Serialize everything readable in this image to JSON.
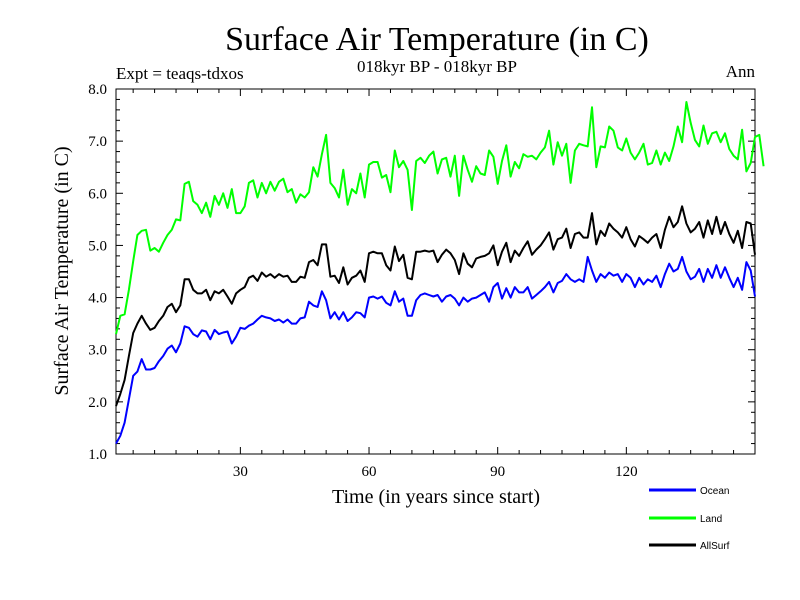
{
  "chart_data": {
    "type": "line",
    "title": "Surface Air Temperature (in C)",
    "subtitle": "018kyr BP - 018kyr BP",
    "expt_label": "Expt = teaqs-tdxos",
    "season_label": "Ann",
    "xlabel": "Time (in years since start)",
    "ylabel": "Surface Air Temperature (in C)",
    "xlim": [
      1,
      150
    ],
    "ylim": [
      1.0,
      8.0
    ],
    "x_ticks": [
      30,
      60,
      90,
      120
    ],
    "x_tick_labels": [
      "30",
      "60",
      "90",
      "120"
    ],
    "y_ticks": [
      1,
      2,
      3,
      4,
      5,
      6,
      7,
      8
    ],
    "y_tick_labels": [
      "1.0",
      "2.0",
      "3.0",
      "4.0",
      "5.0",
      "6.0",
      "7.0",
      "8.0"
    ],
    "legend_position": "bottom-right",
    "series": [
      {
        "name": "Ocean",
        "color": "#0000ff",
        "values": [
          1.2,
          1.35,
          1.6,
          2.05,
          2.5,
          2.58,
          2.82,
          2.62,
          2.62,
          2.65,
          2.78,
          2.88,
          3.02,
          3.08,
          2.95,
          3.12,
          3.45,
          3.42,
          3.3,
          3.25,
          3.37,
          3.35,
          3.2,
          3.38,
          3.3,
          3.33,
          3.35,
          3.12,
          3.25,
          3.42,
          3.4,
          3.46,
          3.5,
          3.58,
          3.65,
          3.62,
          3.6,
          3.55,
          3.58,
          3.52,
          3.58,
          3.5,
          3.5,
          3.6,
          3.62,
          3.92,
          3.85,
          3.82,
          4.12,
          3.95,
          3.6,
          3.72,
          3.58,
          3.72,
          3.55,
          3.62,
          3.72,
          3.7,
          3.62,
          4.0,
          4.02,
          3.98,
          4.02,
          3.9,
          3.85,
          4.12,
          3.92,
          3.98,
          3.65,
          3.65,
          3.95,
          4.05,
          4.08,
          4.05,
          4.02,
          4.05,
          3.92,
          4.02,
          4.05,
          3.98,
          3.85,
          4.0,
          3.92,
          3.98,
          4.0,
          4.05,
          4.1,
          3.92,
          4.2,
          4.28,
          3.98,
          4.18,
          4.0,
          4.2,
          4.1,
          4.1,
          4.2,
          3.98,
          4.05,
          4.12,
          4.2,
          4.3,
          4.1,
          4.28,
          4.32,
          4.45,
          4.35,
          4.3,
          4.35,
          4.3,
          4.78,
          4.52,
          4.3,
          4.45,
          4.38,
          4.48,
          4.42,
          4.45,
          4.3,
          4.45,
          4.38,
          4.2,
          4.38,
          4.25,
          4.35,
          4.3,
          4.42,
          4.2,
          4.45,
          4.65,
          4.5,
          4.55,
          4.78,
          4.5,
          4.35,
          4.4,
          4.55,
          4.3,
          4.55,
          4.38,
          4.62,
          4.38,
          4.58,
          4.38,
          4.2,
          4.38,
          4.15,
          4.68,
          4.52,
          4.02
        ]
      },
      {
        "name": "Land",
        "color": "#00ff00",
        "values": [
          3.3,
          3.65,
          3.68,
          4.15,
          4.7,
          5.2,
          5.28,
          5.3,
          4.9,
          4.95,
          4.88,
          5.05,
          5.2,
          5.3,
          5.5,
          5.48,
          6.18,
          6.22,
          5.85,
          5.78,
          5.62,
          5.82,
          5.55,
          5.95,
          5.78,
          6.0,
          5.72,
          6.08,
          5.62,
          5.62,
          5.75,
          6.2,
          6.25,
          5.92,
          6.2,
          6.0,
          6.22,
          6.05,
          6.22,
          6.28,
          6.02,
          6.08,
          5.82,
          5.98,
          5.92,
          6.02,
          6.5,
          6.32,
          6.75,
          7.12,
          6.2,
          6.1,
          5.92,
          6.45,
          5.78,
          6.08,
          6.0,
          6.38,
          5.92,
          6.55,
          6.6,
          6.6,
          6.3,
          6.35,
          6.02,
          6.82,
          6.5,
          6.62,
          6.45,
          5.68,
          6.62,
          6.68,
          6.58,
          6.72,
          6.8,
          6.38,
          6.65,
          6.68,
          6.32,
          6.72,
          5.95,
          6.72,
          6.45,
          6.22,
          6.52,
          6.38,
          6.35,
          6.82,
          6.7,
          6.18,
          6.62,
          6.92,
          6.32,
          6.6,
          6.48,
          6.75,
          6.7,
          6.72,
          6.65,
          6.78,
          6.88,
          7.2,
          6.55,
          6.98,
          6.72,
          6.95,
          6.2,
          6.82,
          6.95,
          6.92,
          6.9,
          7.65,
          6.5,
          6.9,
          6.88,
          7.28,
          7.2,
          6.88,
          6.82,
          7.05,
          6.78,
          6.65,
          6.78,
          6.95,
          6.55,
          6.58,
          6.82,
          6.55,
          6.78,
          6.62,
          6.9,
          7.28,
          6.98,
          7.75,
          7.35,
          7.02,
          6.9,
          7.3,
          6.95,
          7.15,
          7.18,
          6.98,
          7.15,
          6.85,
          6.72,
          6.65,
          7.22,
          6.42,
          6.58,
          7.08,
          7.12,
          6.52
        ]
      },
      {
        "name": "AllSurf",
        "color": "#000000",
        "values": [
          1.92,
          2.15,
          2.42,
          2.88,
          3.32,
          3.5,
          3.65,
          3.5,
          3.38,
          3.42,
          3.55,
          3.65,
          3.82,
          3.88,
          3.72,
          3.85,
          4.35,
          4.35,
          4.15,
          4.08,
          4.08,
          4.15,
          3.95,
          4.12,
          4.08,
          4.15,
          4.02,
          3.88,
          4.08,
          4.15,
          4.2,
          4.38,
          4.42,
          4.32,
          4.48,
          4.4,
          4.45,
          4.38,
          4.45,
          4.4,
          4.42,
          4.3,
          4.3,
          4.4,
          4.38,
          4.68,
          4.72,
          4.62,
          5.02,
          5.02,
          4.4,
          4.42,
          4.28,
          4.58,
          4.25,
          4.38,
          4.42,
          4.52,
          4.3,
          4.85,
          4.88,
          4.85,
          4.85,
          4.62,
          4.52,
          4.98,
          4.7,
          4.82,
          4.38,
          4.35,
          4.88,
          4.88,
          4.9,
          4.88,
          4.9,
          4.68,
          4.82,
          4.92,
          4.85,
          4.72,
          4.45,
          4.85,
          4.65,
          4.58,
          4.75,
          4.78,
          4.8,
          4.85,
          5.0,
          4.62,
          4.88,
          5.05,
          4.68,
          4.9,
          4.8,
          4.95,
          5.08,
          4.82,
          4.92,
          5.0,
          5.12,
          5.25,
          4.92,
          5.12,
          5.15,
          5.32,
          4.95,
          5.22,
          5.25,
          5.15,
          5.15,
          5.62,
          5.02,
          5.28,
          5.18,
          5.42,
          5.32,
          5.25,
          5.15,
          5.35,
          5.12,
          4.98,
          5.18,
          5.12,
          5.05,
          5.15,
          5.22,
          4.95,
          5.3,
          5.55,
          5.35,
          5.45,
          5.75,
          5.42,
          5.25,
          5.32,
          5.45,
          5.15,
          5.48,
          5.22,
          5.55,
          5.22,
          5.45,
          5.22,
          5.05,
          5.28,
          4.95,
          5.45,
          5.42,
          4.82
        ]
      }
    ]
  }
}
